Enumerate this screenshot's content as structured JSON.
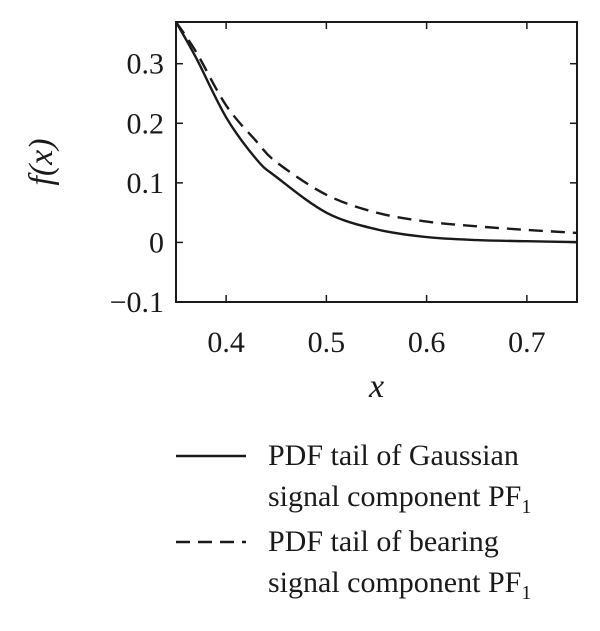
{
  "chart_data": {
    "type": "line",
    "title": "",
    "xlabel": "x",
    "ylabel": "f(x)",
    "xlim": [
      0.35,
      0.75
    ],
    "ylim": [
      -0.1,
      0.37
    ],
    "x_ticks": [
      0.4,
      0.5,
      0.6,
      0.7
    ],
    "x_tick_labels": [
      "0.4",
      "0.5",
      "0.6",
      "0.7"
    ],
    "y_ticks": [
      -0.1,
      0,
      0.1,
      0.2,
      0.3
    ],
    "y_tick_labels": [
      "−0.1",
      "0",
      "0.1",
      "0.2",
      "0.3"
    ],
    "grid": false,
    "legend_position": "bottom",
    "series": [
      {
        "name": "PDF tail of Gaussian signal component PF1",
        "legend_lines": [
          "PDF tail of Gaussian",
          "signal component PF"
        ],
        "legend_subscript": "1",
        "style": "solid",
        "color": "#1a1a1a",
        "x": [
          0.35,
          0.37,
          0.4,
          0.43,
          0.45,
          0.5,
          0.55,
          0.6,
          0.65,
          0.7,
          0.75
        ],
        "y": [
          0.37,
          0.31,
          0.21,
          0.14,
          0.11,
          0.05,
          0.022,
          0.009,
          0.004,
          0.002,
          0.0005
        ]
      },
      {
        "name": "PDF tail of bearing signal component PF1",
        "legend_lines": [
          "PDF tail of bearing",
          "signal component PF"
        ],
        "legend_subscript": "1",
        "style": "dashed",
        "color": "#1a1a1a",
        "x": [
          0.35,
          0.37,
          0.4,
          0.43,
          0.45,
          0.5,
          0.55,
          0.6,
          0.65,
          0.7,
          0.75
        ],
        "y": [
          0.37,
          0.32,
          0.23,
          0.17,
          0.135,
          0.08,
          0.05,
          0.035,
          0.027,
          0.021,
          0.016
        ]
      }
    ]
  }
}
